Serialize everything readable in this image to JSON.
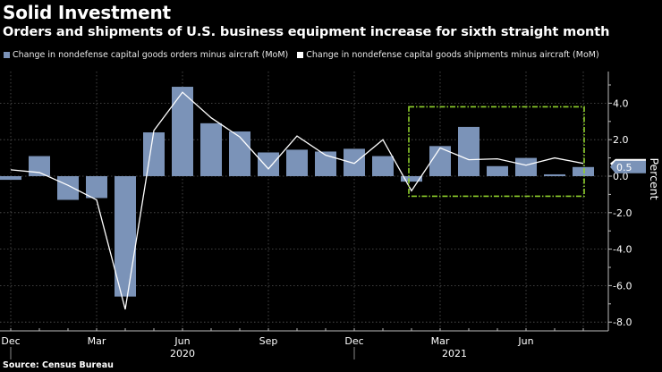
{
  "header": {
    "title": "Solid Investment",
    "subtitle": "Orders and shipments of U.S. business equipment increase for sixth straight month"
  },
  "legend": [
    {
      "label": "Change in nondefense capital goods orders minus aircraft (MoM)",
      "color": "#7b93b8"
    },
    {
      "label": "Change in nondefense capital goods shipments minus aircraft (MoM)",
      "color": "#ffffff"
    }
  ],
  "footer": {
    "source": "Source: Census Bureau"
  },
  "chart_data": {
    "type": "bar+line",
    "title": "Solid Investment",
    "subtitle": "Orders and shipments of U.S. business equipment increase for sixth straight month",
    "ylabel": "Percent",
    "xlabel": "",
    "ylim": [
      -8.0,
      5.5
    ],
    "y_ticks": [
      "4.0",
      "2.0",
      "0.0",
      "-2.0",
      "-4.0",
      "-6.0",
      "-8.0"
    ],
    "y_tick_values": [
      4,
      2,
      0,
      -2,
      -4,
      -6,
      -8
    ],
    "y_axis_position": "right",
    "grid": true,
    "legend_position": "top-left",
    "categories": [
      "Dec 2019",
      "Jan 2020",
      "Feb 2020",
      "Mar 2020",
      "Apr 2020",
      "May 2020",
      "Jun 2020",
      "Jul 2020",
      "Aug 2020",
      "Sep 2020",
      "Oct 2020",
      "Nov 2020",
      "Dec 2020",
      "Jan 2021",
      "Feb 2021",
      "Mar 2021",
      "Apr 2021",
      "May 2021",
      "Jun 2021",
      "Jul 2021",
      "Aug 2021"
    ],
    "x_tick_labels": [
      {
        "label": "Dec",
        "index": 0
      },
      {
        "label": "Mar",
        "index": 3
      },
      {
        "label": "Jun",
        "index": 6
      },
      {
        "label": "Sep",
        "index": 9
      },
      {
        "label": "Dec",
        "index": 12
      },
      {
        "label": "Mar",
        "index": 15
      },
      {
        "label": "Jun",
        "index": 18
      }
    ],
    "year_labels": [
      {
        "label": "2020",
        "index": 6
      },
      {
        "label": "2021",
        "index": 16
      }
    ],
    "year_dividers": [
      0,
      12
    ],
    "series": [
      {
        "name": "Change in nondefense capital goods orders minus aircraft (MoM)",
        "type": "bar",
        "color": "#7b93b8",
        "values": [
          -0.2,
          1.1,
          -1.3,
          -1.2,
          -6.6,
          2.4,
          4.9,
          2.9,
          2.45,
          1.3,
          1.45,
          1.35,
          1.5,
          1.1,
          -0.3,
          1.65,
          2.7,
          0.55,
          1.0,
          0.1,
          0.5
        ]
      },
      {
        "name": "Change in nondefense capital goods shipments minus aircraft (MoM)",
        "type": "line",
        "color": "#ffffff",
        "values": [
          0.35,
          0.2,
          -0.5,
          -1.3,
          -7.3,
          2.5,
          4.6,
          3.2,
          2.15,
          0.4,
          2.2,
          1.15,
          0.7,
          2.0,
          -0.8,
          1.55,
          0.9,
          0.95,
          0.6,
          1.0,
          0.7
        ]
      }
    ],
    "last_value_tags": [
      {
        "series": 0,
        "label": "0.5",
        "color": "#7b93b8"
      },
      {
        "series": 1,
        "label": "0.7",
        "color": "#ffffff"
      }
    ],
    "annotations": [
      {
        "type": "highlight-box",
        "style": "dash-dot",
        "color": "#8fd12c",
        "from_index": 14,
        "to_index": 20,
        "y_range": [
          -1.1,
          3.8
        ]
      }
    ]
  }
}
